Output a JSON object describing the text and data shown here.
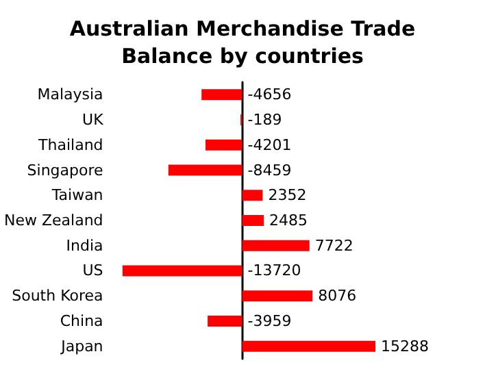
{
  "chart_data": {
    "type": "bar",
    "orientation": "horizontal",
    "title": "Australian Merchandise Trade\nBalance by countries",
    "categories": [
      "Malaysia",
      "UK",
      "Thailand",
      "Singapore",
      "Taiwan",
      "New Zealand",
      "India",
      "US",
      "South Korea",
      "China",
      "Japan"
    ],
    "values": [
      -4656,
      -189,
      -4201,
      -8459,
      2352,
      2485,
      7722,
      -13720,
      8076,
      -3959,
      15288
    ],
    "color": "#ff0000",
    "data_labels": true,
    "grid": false
  }
}
